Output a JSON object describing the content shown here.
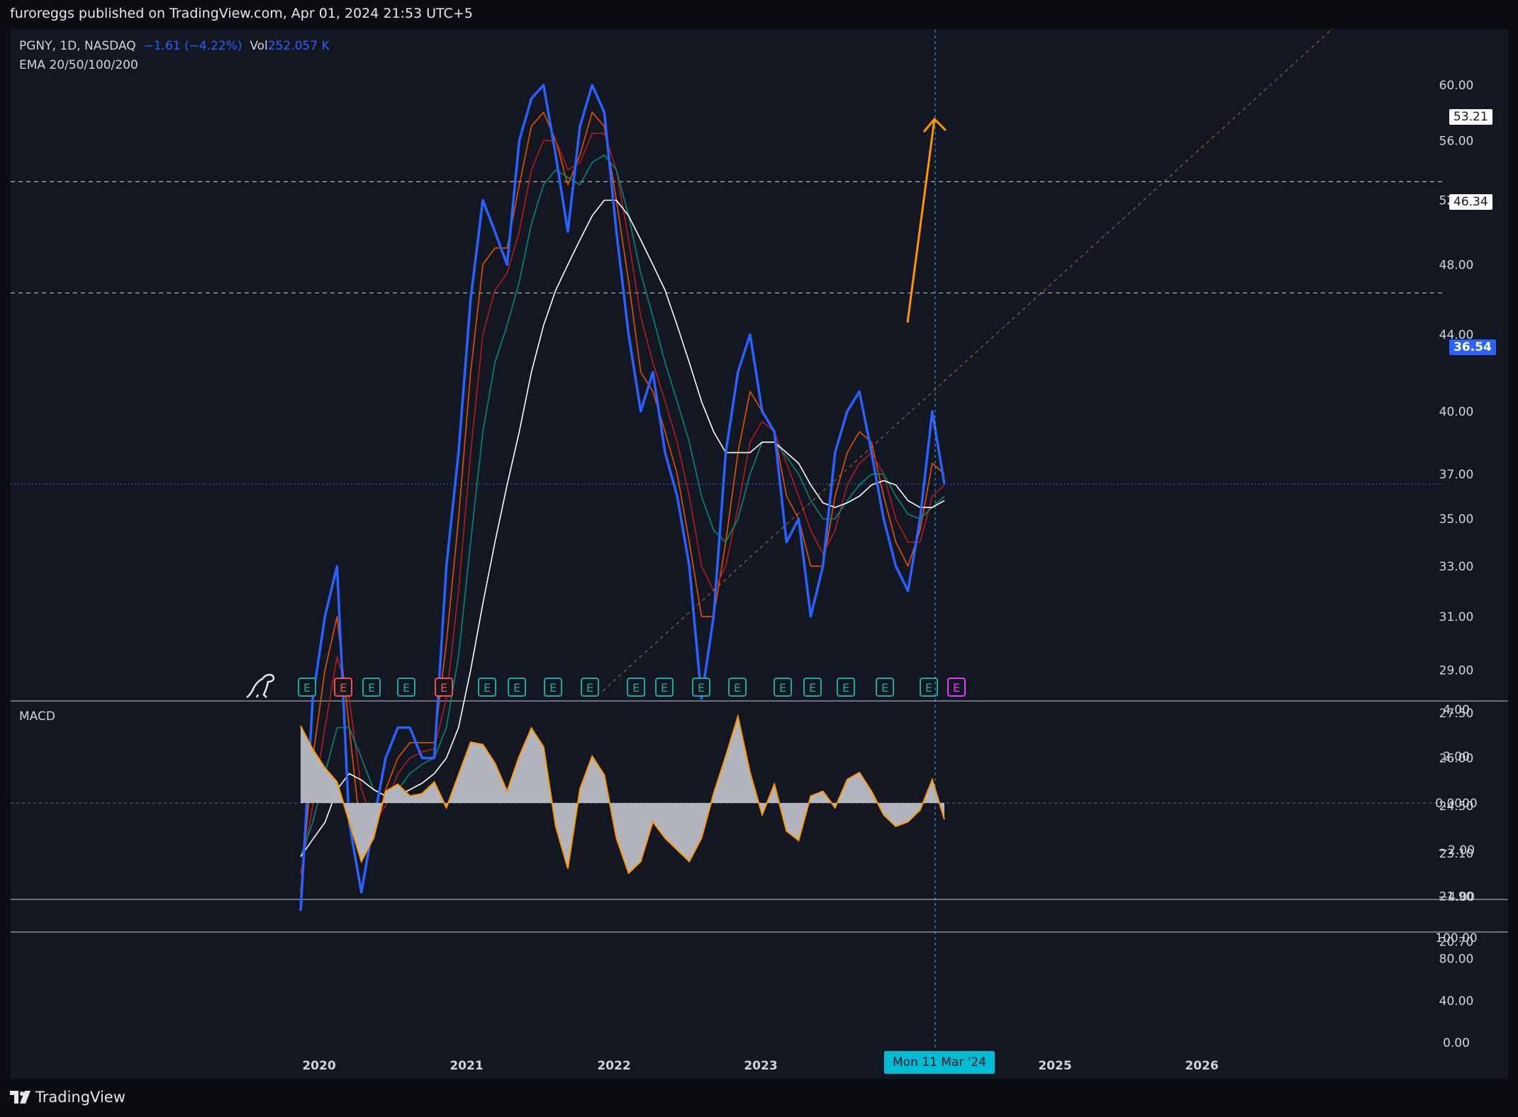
{
  "header": {
    "publish_line": "furoreggs published on TradingView.com, Apr 01, 2024 21:53 UTC+5"
  },
  "legend": {
    "symbol": "PGNY, 1D, NASDAQ",
    "change": "−1.61 (−4.22%)",
    "vol_label": "Vol",
    "vol_value": "252.057 K",
    "ema_label": "EMA 20/50/100/200"
  },
  "macd": {
    "label": "MACD"
  },
  "price_tags": {
    "target": "53.21",
    "resistance": "46.34",
    "last": "36.54"
  },
  "cursor": {
    "date_label": "Mon 11 Mar '24"
  },
  "footer": {
    "brand": "TradingView"
  },
  "colors": {
    "price": "#2962ff",
    "ema20": "#e65100",
    "ema50": "#b71c1c",
    "ema100": "#00897b",
    "ema200": "#ffffff",
    "projection_arrow": "#ff9800",
    "macd_line": "#ff9800",
    "macd_hist": "#b2b5be",
    "earnings_green": "#26a69a",
    "earnings_red": "#ef5350",
    "earnings_purple": "#e040fb"
  },
  "chart_data": [
    {
      "type": "line",
      "title": "PGNY, 1D, NASDAQ",
      "y_scale": "log",
      "ylim": [
        20.7,
        61.5
      ],
      "y_ticks": [
        "60.00",
        "56.00",
        "52.00",
        "48.00",
        "44.00",
        "40.00",
        "37.00",
        "35.00",
        "33.00",
        "31.00",
        "29.00",
        "27.50",
        "26.00",
        "24.50",
        "23.10",
        "21.90",
        "20.70"
      ],
      "x_ticks": [
        "2020",
        "2021",
        "2022",
        "2023",
        "2025",
        "2026"
      ],
      "x": [
        "2019-11",
        "2019-12",
        "2020-01",
        "2020-02",
        "2020-03",
        "2020-04",
        "2020-05",
        "2020-06",
        "2020-07",
        "2020-08",
        "2020-09",
        "2020-10",
        "2020-11",
        "2020-12",
        "2021-01",
        "2021-02",
        "2021-03",
        "2021-04",
        "2021-05",
        "2021-06",
        "2021-07",
        "2021-08",
        "2021-09",
        "2021-10",
        "2021-11",
        "2021-12",
        "2022-01",
        "2022-02",
        "2022-03",
        "2022-04",
        "2022-05",
        "2022-06",
        "2022-07",
        "2022-08",
        "2022-09",
        "2022-10",
        "2022-11",
        "2022-12",
        "2023-01",
        "2023-02",
        "2023-03",
        "2023-04",
        "2023-05",
        "2023-06",
        "2023-07",
        "2023-08",
        "2023-09",
        "2023-10",
        "2023-11",
        "2023-12",
        "2024-01",
        "2024-02",
        "2024-03",
        "2024-04"
      ],
      "series": [
        {
          "name": "PGNY",
          "values": [
            21.5,
            28,
            31,
            33,
            24,
            22,
            24,
            26,
            27,
            27,
            26,
            26,
            33,
            38,
            46,
            52,
            50,
            48,
            56,
            59,
            60,
            55,
            50,
            57,
            60,
            58,
            50,
            44,
            40,
            42,
            38,
            36,
            33,
            28,
            31,
            38,
            42,
            44,
            40,
            39,
            34,
            35,
            31,
            33,
            38,
            40,
            41,
            38,
            35,
            33,
            32,
            35,
            40,
            36.54
          ]
        },
        {
          "name": "EMA 20",
          "values": [
            22,
            26,
            29,
            31,
            27,
            23.5,
            23.5,
            25,
            26,
            26.5,
            26.5,
            26.5,
            30,
            35,
            42,
            48,
            49,
            49,
            53,
            57,
            58,
            56,
            53,
            55,
            58,
            57,
            52,
            47,
            42,
            41,
            39,
            37,
            34,
            31,
            31,
            34,
            38,
            41,
            40,
            39,
            36,
            35,
            33,
            33,
            36,
            38,
            39,
            38.5,
            36,
            34,
            33,
            34.5,
            37.5,
            37
          ]
        },
        {
          "name": "EMA 50",
          "values": [
            22.5,
            24.5,
            27,
            29.5,
            28,
            25,
            24,
            24.5,
            25.5,
            26,
            26.2,
            26.3,
            28,
            32,
            38,
            44,
            46.5,
            47.5,
            50,
            54,
            56,
            56,
            54,
            54.5,
            56.5,
            56.5,
            54,
            49.5,
            45,
            42.5,
            40.5,
            38.5,
            36,
            33,
            32,
            33,
            35.5,
            38.5,
            39.5,
            39,
            37.5,
            36,
            34.5,
            33.5,
            34.5,
            36.5,
            37.5,
            38,
            37,
            35,
            34,
            34,
            36,
            36.5
          ]
        },
        {
          "name": "EMA 100",
          "values": [
            23,
            24,
            25.5,
            27,
            27,
            26,
            25,
            24.8,
            25,
            25.5,
            25.8,
            26,
            27,
            29.5,
            34,
            39,
            42.5,
            44.5,
            47,
            50.5,
            53,
            54,
            53.5,
            53,
            54.5,
            55,
            54,
            51,
            47.5,
            45,
            42.5,
            40.5,
            38.5,
            36,
            34.5,
            34,
            35,
            37,
            38.5,
            38.5,
            37.8,
            37,
            35.8,
            35,
            35,
            35.8,
            36.5,
            37,
            37,
            36,
            35.2,
            35,
            35.5,
            36
          ]
        },
        {
          "name": "EMA 200",
          "values": [
            23,
            23.5,
            24,
            25,
            25.5,
            25.3,
            25,
            24.8,
            24.8,
            25,
            25.2,
            25.5,
            26,
            27,
            29,
            31.5,
            34,
            36.5,
            39,
            42,
            44.5,
            46.5,
            48,
            49.5,
            51,
            52,
            52,
            51,
            49.5,
            48,
            46.5,
            44.5,
            42.5,
            40.5,
            39,
            38,
            38,
            38,
            38.5,
            38.5,
            38,
            37.5,
            36.5,
            35.7,
            35.5,
            35.7,
            36,
            36.5,
            36.7,
            36.5,
            35.8,
            35.5,
            35.5,
            35.8
          ]
        }
      ],
      "levels": [
        53.21,
        46.34,
        36.54
      ]
    },
    {
      "type": "area",
      "title": "MACD",
      "ylim": [
        -4,
        4
      ],
      "y_ticks": [
        "4.00",
        "2.00",
        "0.0000",
        "−2.00",
        "−4.00"
      ],
      "x": [
        "2019-11",
        "2019-12",
        "2020-01",
        "2020-02",
        "2020-03",
        "2020-04",
        "2020-05",
        "2020-06",
        "2020-07",
        "2020-08",
        "2020-09",
        "2020-10",
        "2020-11",
        "2020-12",
        "2021-01",
        "2021-02",
        "2021-03",
        "2021-04",
        "2021-05",
        "2021-06",
        "2021-07",
        "2021-08",
        "2021-09",
        "2021-10",
        "2021-11",
        "2021-12",
        "2022-01",
        "2022-02",
        "2022-03",
        "2022-04",
        "2022-05",
        "2022-06",
        "2022-07",
        "2022-08",
        "2022-09",
        "2022-10",
        "2022-11",
        "2022-12",
        "2023-01",
        "2023-02",
        "2023-03",
        "2023-04",
        "2023-05",
        "2023-06",
        "2023-07",
        "2023-08",
        "2023-09",
        "2023-10",
        "2023-11",
        "2023-12",
        "2024-01",
        "2024-02",
        "2024-03",
        "2024-04"
      ],
      "series": [
        {
          "name": "MACD",
          "values": [
            3.3,
            2.3,
            1.5,
            0.9,
            -0.8,
            -2.5,
            -1.5,
            0.5,
            0.8,
            0.3,
            0.4,
            0.9,
            -0.2,
            1.2,
            2.6,
            2.5,
            1.7,
            0.5,
            2.0,
            3.2,
            2.4,
            -1.0,
            -2.8,
            0.6,
            2.0,
            1.2,
            -1.5,
            -3.0,
            -2.5,
            -0.8,
            -1.5,
            -2.0,
            -2.5,
            -1.5,
            0.4,
            2.0,
            3.7,
            1.3,
            -0.5,
            0.8,
            -1.2,
            -1.6,
            0.3,
            0.5,
            -0.2,
            1.0,
            1.3,
            0.5,
            -0.5,
            -1.0,
            -0.8,
            -0.3,
            1.0,
            -0.7
          ]
        }
      ]
    },
    {
      "type": "line",
      "title": "",
      "y_ticks": [
        "100.00",
        "80.00",
        "40.00",
        "0.00"
      ],
      "series": []
    }
  ]
}
